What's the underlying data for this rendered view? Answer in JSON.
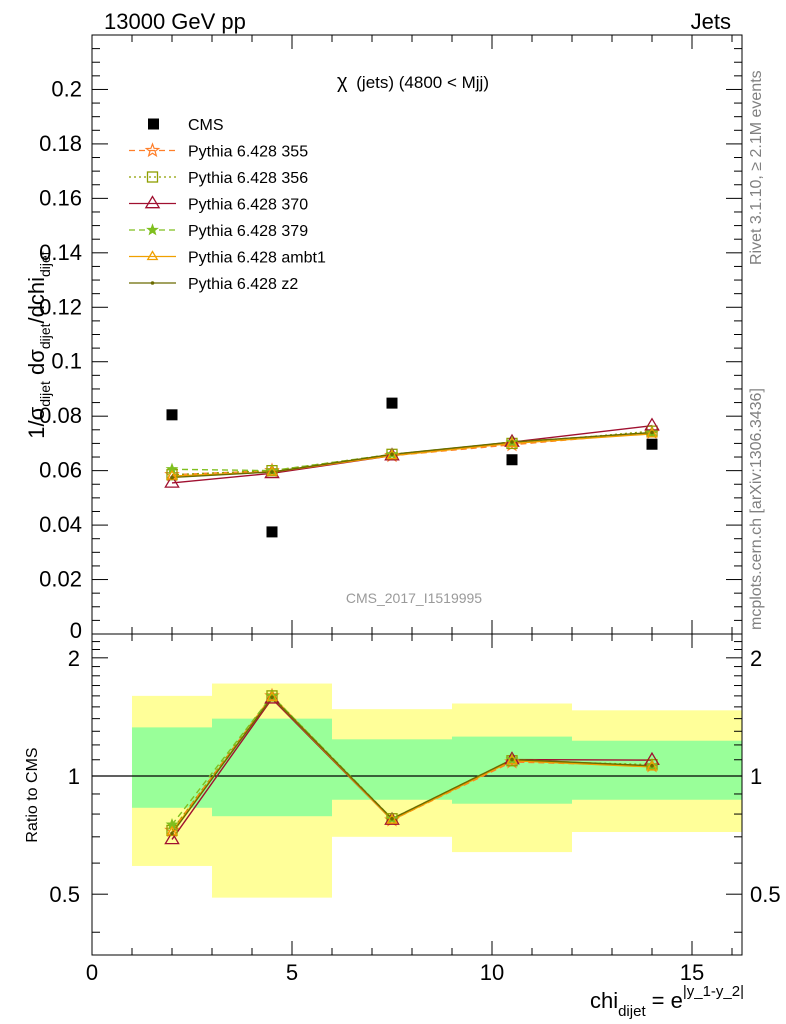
{
  "header": {
    "energy": "13000 GeV pp",
    "process": "Jets",
    "rivet": "Rivet 3.1.10, ≥ 2.1M events",
    "source": "mcplots.cern.ch [arXiv:1306.3436]"
  },
  "chart_data": {
    "type": "scatter",
    "title_chi": "χ",
    "title_rest": "(jets) (4800 < Mjj)",
    "analysis_id": "CMS_2017_I1519995",
    "xlabel": "chi",
    "xlabel_sub": "dijet",
    "xlabel_eq": "= e",
    "xlabel_sup": "|y_1-y_2|",
    "ylabel": "1/σ_dijet dσ_dijet/dchi_dijet",
    "ylabel_parts": {
      "a": "1/σ",
      "a_sub": "dijet",
      "b": " dσ",
      "b_sub": "dijet",
      "c": "/dchi",
      "c_sub": "dijet"
    },
    "ratio_ylabel": "Ratio to CMS",
    "xlim": [
      0,
      16.25
    ],
    "ylim": [
      0,
      0.22
    ],
    "ratio_ylim": [
      0.35,
      2.3
    ],
    "x_ticks": [
      "0",
      "5",
      "10",
      "15"
    ],
    "y_ticks": [
      "0",
      "0.02",
      "0.04",
      "0.06",
      "0.08",
      "0.1",
      "0.12",
      "0.14",
      "0.16",
      "0.18",
      "0.2"
    ],
    "ratio_ticks": [
      "0.5",
      "1",
      "2"
    ],
    "bins": [
      [
        1,
        3
      ],
      [
        3,
        6
      ],
      [
        6,
        9
      ],
      [
        9,
        12
      ],
      [
        12,
        16.25
      ]
    ],
    "x": [
      2,
      4.5,
      7.5,
      10.5,
      14
    ],
    "data": {
      "name": "CMS",
      "values": [
        0.0805,
        0.0375,
        0.0848,
        0.064,
        0.0697
      ],
      "band_inner": [
        [
          0.83,
          1.33
        ],
        [
          0.79,
          1.4
        ],
        [
          0.87,
          1.24
        ],
        [
          0.85,
          1.26
        ],
        [
          0.87,
          1.23
        ]
      ],
      "band_outer": [
        [
          0.59,
          1.6
        ],
        [
          0.49,
          1.72
        ],
        [
          0.7,
          1.48
        ],
        [
          0.64,
          1.53
        ],
        [
          0.72,
          1.47
        ]
      ]
    },
    "series": [
      {
        "name": "Pythia 6.428 355",
        "color": "#ff7f2a",
        "dash": "6,4",
        "marker": "star-open",
        "values": [
          0.0585,
          0.06,
          0.0655,
          0.0695,
          0.074
        ]
      },
      {
        "name": "Pythia 6.428 356",
        "color": "#8f9f00",
        "dash": "2,3",
        "marker": "square-open",
        "values": [
          0.0585,
          0.06,
          0.066,
          0.07,
          0.0745
        ]
      },
      {
        "name": "Pythia 6.428 370",
        "color": "#a01030",
        "dash": "",
        "marker": "triangle-open",
        "values": [
          0.0555,
          0.059,
          0.0655,
          0.0705,
          0.0765
        ]
      },
      {
        "name": "Pythia 6.428 379",
        "color": "#7fbf1f",
        "dash": "6,4",
        "marker": "star-filled",
        "values": [
          0.0605,
          0.06,
          0.066,
          0.0705,
          0.074
        ]
      },
      {
        "name": "Pythia 6.428 ambt1",
        "color": "#f0a000",
        "dash": "",
        "marker": "triangle-open-small",
        "values": [
          0.058,
          0.0595,
          0.0655,
          0.07,
          0.0735
        ]
      },
      {
        "name": "Pythia 6.428 z2",
        "color": "#6b6b00",
        "dash": "",
        "marker": "dot",
        "values": [
          0.0575,
          0.0595,
          0.066,
          0.0705,
          0.074
        ]
      }
    ],
    "colors": {
      "band_inner": "#99ff99",
      "band_outer": "#ffff99"
    }
  }
}
